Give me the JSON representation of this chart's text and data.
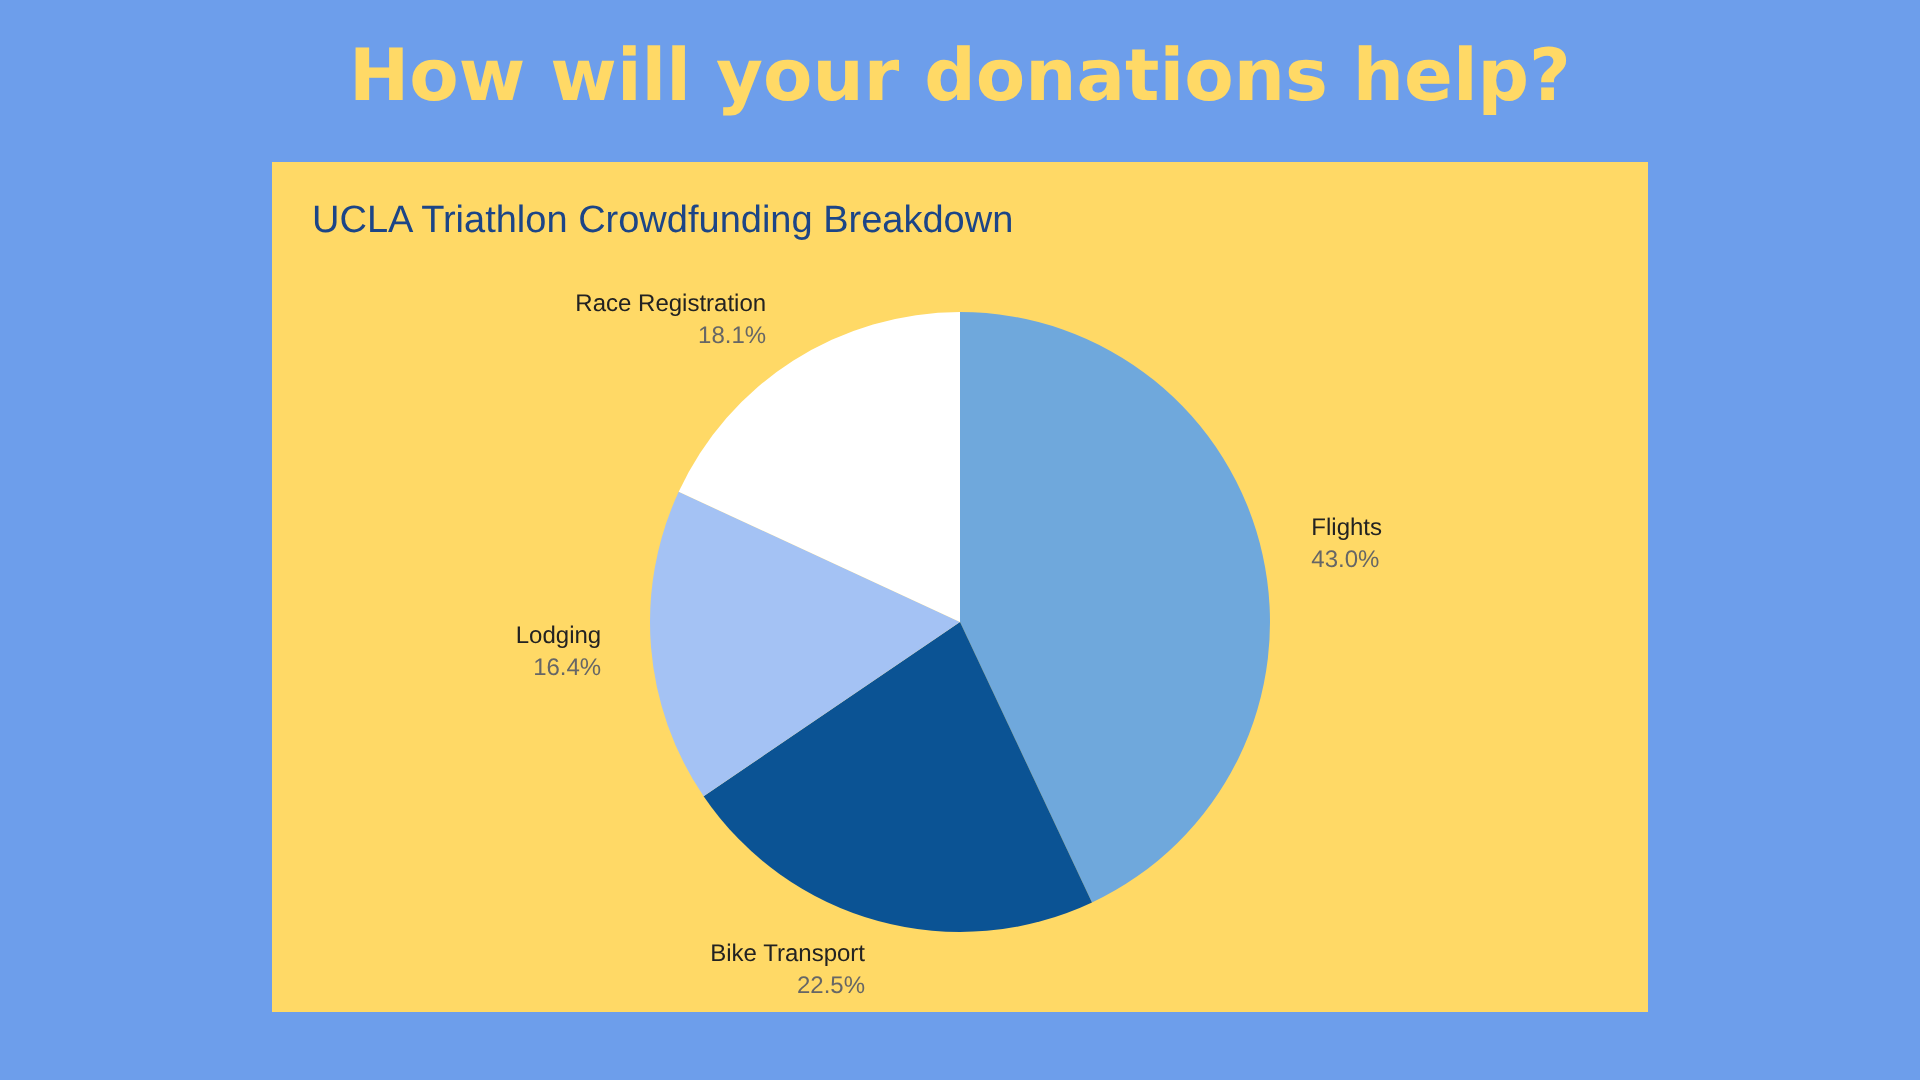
{
  "chart_data": {
    "type": "pie",
    "title": "How will your donations help?",
    "subtitle": "UCLA Triathlon Crowdfunding Breakdown",
    "categories": [
      "Flights",
      "Bike Transport",
      "Lodging",
      "Race Registration"
    ],
    "values": [
      43.0,
      22.5,
      16.4,
      18.1
    ],
    "value_labels": [
      "43.0%",
      "22.5%",
      "16.4%",
      "18.1%"
    ],
    "colors": [
      "#6fa8dc",
      "#0b5394",
      "#a4c2f4",
      "#ffffff"
    ],
    "legend": false
  }
}
